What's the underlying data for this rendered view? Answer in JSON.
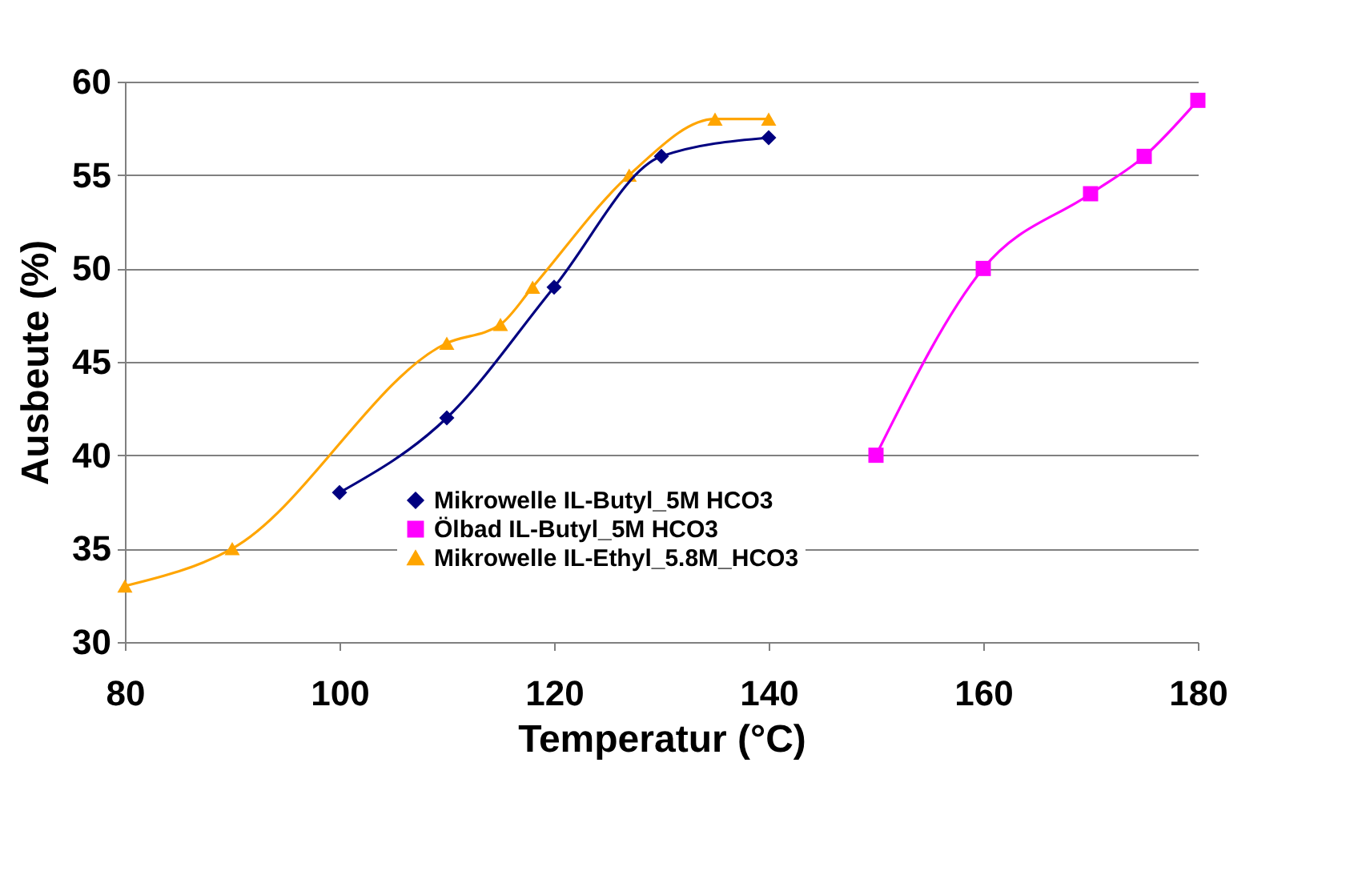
{
  "chart_data": {
    "type": "line",
    "xlabel": "Temperatur (°C)",
    "ylabel": "Ausbeute (%)",
    "xlim": [
      80,
      180
    ],
    "xticks": [
      80,
      100,
      120,
      140,
      160,
      180
    ],
    "ylim": [
      30,
      60
    ],
    "yticks": [
      30,
      35,
      40,
      45,
      50,
      55,
      60
    ],
    "grid": "y",
    "legend": "bottom",
    "line_style": "solid",
    "series": [
      {
        "name": "Mikrowelle IL-Butyl_5M HCO3",
        "color": "#000080",
        "marker": "diamond",
        "x": [
          100,
          110,
          120,
          130,
          140
        ],
        "values": [
          38,
          42,
          49,
          56,
          57
        ]
      },
      {
        "name": "Ölbad IL-Butyl_5M HCO3",
        "color": "#ff00ff",
        "marker": "square",
        "x": [
          150,
          160,
          170,
          175,
          180
        ],
        "values": [
          40,
          50,
          54,
          56,
          59
        ]
      },
      {
        "name": "Mikrowelle IL-Ethyl_5.8M_HCO3",
        "color": "#ffa500",
        "marker": "triangle",
        "x": [
          80,
          90,
          110,
          115,
          118,
          127,
          135,
          140
        ],
        "values": [
          33,
          35,
          46,
          47,
          49,
          55,
          58,
          58
        ]
      }
    ]
  }
}
